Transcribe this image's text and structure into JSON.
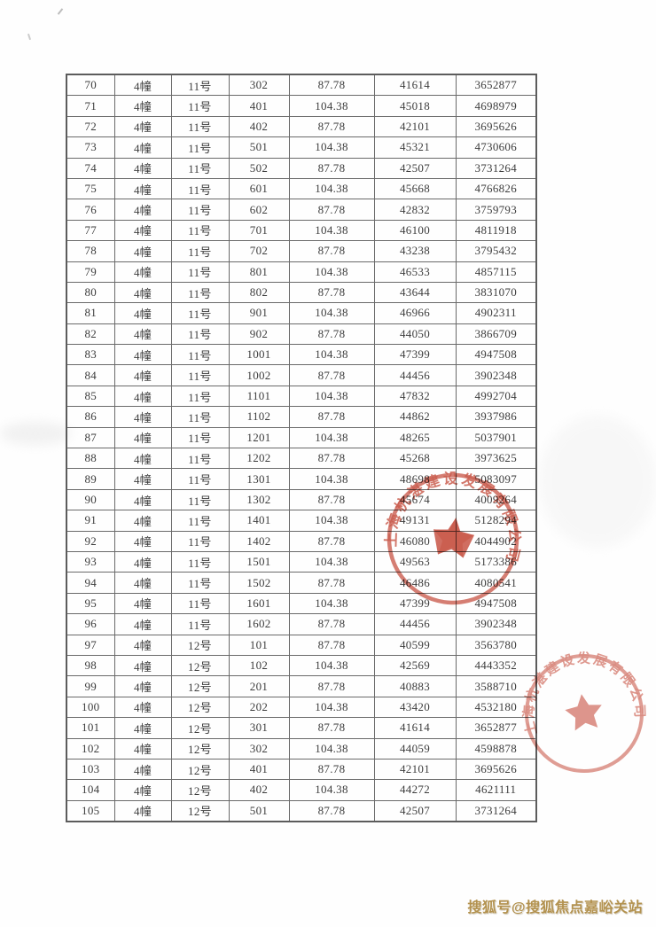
{
  "table": {
    "rows": [
      [
        "70",
        "4幢",
        "11号",
        "302",
        "87.78",
        "41614",
        "3652877"
      ],
      [
        "71",
        "4幢",
        "11号",
        "401",
        "104.38",
        "45018",
        "4698979"
      ],
      [
        "72",
        "4幢",
        "11号",
        "402",
        "87.78",
        "42101",
        "3695626"
      ],
      [
        "73",
        "4幢",
        "11号",
        "501",
        "104.38",
        "45321",
        "4730606"
      ],
      [
        "74",
        "4幢",
        "11号",
        "502",
        "87.78",
        "42507",
        "3731264"
      ],
      [
        "75",
        "4幢",
        "11号",
        "601",
        "104.38",
        "45668",
        "4766826"
      ],
      [
        "76",
        "4幢",
        "11号",
        "602",
        "87.78",
        "42832",
        "3759793"
      ],
      [
        "77",
        "4幢",
        "11号",
        "701",
        "104.38",
        "46100",
        "4811918"
      ],
      [
        "78",
        "4幢",
        "11号",
        "702",
        "87.78",
        "43238",
        "3795432"
      ],
      [
        "79",
        "4幢",
        "11号",
        "801",
        "104.38",
        "46533",
        "4857115"
      ],
      [
        "80",
        "4幢",
        "11号",
        "802",
        "87.78",
        "43644",
        "3831070"
      ],
      [
        "81",
        "4幢",
        "11号",
        "901",
        "104.38",
        "46966",
        "4902311"
      ],
      [
        "82",
        "4幢",
        "11号",
        "902",
        "87.78",
        "44050",
        "3866709"
      ],
      [
        "83",
        "4幢",
        "11号",
        "1001",
        "104.38",
        "47399",
        "4947508"
      ],
      [
        "84",
        "4幢",
        "11号",
        "1002",
        "87.78",
        "44456",
        "3902348"
      ],
      [
        "85",
        "4幢",
        "11号",
        "1101",
        "104.38",
        "47832",
        "4992704"
      ],
      [
        "86",
        "4幢",
        "11号",
        "1102",
        "87.78",
        "44862",
        "3937986"
      ],
      [
        "87",
        "4幢",
        "11号",
        "1201",
        "104.38",
        "48265",
        "5037901"
      ],
      [
        "88",
        "4幢",
        "11号",
        "1202",
        "87.78",
        "45268",
        "3973625"
      ],
      [
        "89",
        "4幢",
        "11号",
        "1301",
        "104.38",
        "48698",
        "5083097"
      ],
      [
        "90",
        "4幢",
        "11号",
        "1302",
        "87.78",
        "45674",
        "4009264"
      ],
      [
        "91",
        "4幢",
        "11号",
        "1401",
        "104.38",
        "49131",
        "5128294"
      ],
      [
        "92",
        "4幢",
        "11号",
        "1402",
        "87.78",
        "46080",
        "4044902"
      ],
      [
        "93",
        "4幢",
        "11号",
        "1501",
        "104.38",
        "49563",
        "5173386"
      ],
      [
        "94",
        "4幢",
        "11号",
        "1502",
        "87.78",
        "46486",
        "4080541"
      ],
      [
        "95",
        "4幢",
        "11号",
        "1601",
        "104.38",
        "47399",
        "4947508"
      ],
      [
        "96",
        "4幢",
        "11号",
        "1602",
        "87.78",
        "44456",
        "3902348"
      ],
      [
        "97",
        "4幢",
        "12号",
        "101",
        "87.78",
        "40599",
        "3563780"
      ],
      [
        "98",
        "4幢",
        "12号",
        "102",
        "104.38",
        "42569",
        "4443352"
      ],
      [
        "99",
        "4幢",
        "12号",
        "201",
        "87.78",
        "40883",
        "3588710"
      ],
      [
        "100",
        "4幢",
        "12号",
        "202",
        "104.38",
        "43420",
        "4532180"
      ],
      [
        "101",
        "4幢",
        "12号",
        "301",
        "87.78",
        "41614",
        "3652877"
      ],
      [
        "102",
        "4幢",
        "12号",
        "302",
        "104.38",
        "44059",
        "4598878"
      ],
      [
        "103",
        "4幢",
        "12号",
        "401",
        "87.78",
        "42101",
        "3695626"
      ],
      [
        "104",
        "4幢",
        "12号",
        "402",
        "104.38",
        "44272",
        "4621111"
      ],
      [
        "105",
        "4幢",
        "12号",
        "501",
        "87.78",
        "42507",
        "3731264"
      ]
    ]
  },
  "seal": {
    "text": "上海杭湛建设发展有限公司",
    "color": "#c03a28"
  },
  "watermark": {
    "text": "搜狐号@搜狐焦点嘉峪关站",
    "color": "#b3924f"
  }
}
